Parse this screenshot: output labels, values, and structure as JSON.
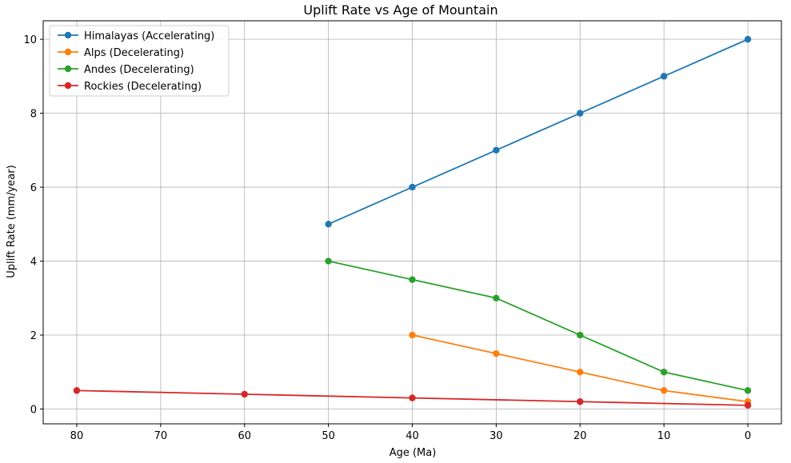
{
  "chart_data": {
    "type": "line",
    "title": "Uplift Rate vs Age of Mountain",
    "xlabel": "Age (Ma)",
    "ylabel": "Uplift Rate (mm/year)",
    "xlim": [
      84,
      -4
    ],
    "ylim": [
      -0.4,
      10.5
    ],
    "x_reversed": true,
    "x_ticks": [
      80,
      70,
      60,
      50,
      40,
      30,
      20,
      10,
      0
    ],
    "y_ticks": [
      0,
      2,
      4,
      6,
      8,
      10
    ],
    "grid": true,
    "legend_position": "top-left",
    "series": [
      {
        "name": "Himalayas (Accelerating)",
        "color": "#1f77b4",
        "x": [
          50,
          40,
          30,
          20,
          10,
          0
        ],
        "y": [
          5,
          6,
          7,
          8,
          9,
          10
        ]
      },
      {
        "name": "Alps (Decelerating)",
        "color": "#ff7f0e",
        "x": [
          40,
          30,
          20,
          10,
          0
        ],
        "y": [
          2,
          1.5,
          1,
          0.5,
          0.2
        ]
      },
      {
        "name": "Andes (Decelerating)",
        "color": "#2ca02c",
        "x": [
          50,
          40,
          30,
          20,
          10,
          0
        ],
        "y": [
          4,
          3.5,
          3,
          2,
          1,
          0.5
        ]
      },
      {
        "name": "Rockies (Decelerating)",
        "color": "#d62728",
        "x": [
          80,
          60,
          40,
          20,
          0
        ],
        "y": [
          0.5,
          0.4,
          0.3,
          0.2,
          0.1
        ]
      }
    ]
  }
}
